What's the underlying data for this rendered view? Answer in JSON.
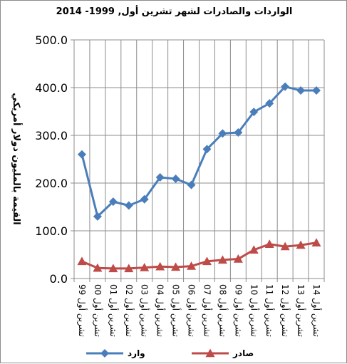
{
  "chart_data": {
    "type": "line",
    "title": "الواردات والصادرات لشهر تشرين أول,  1999- 2014",
    "ylabel": "القيمة بالمليون دولار أمريكي",
    "xlabel": "",
    "ylim": [
      0,
      500
    ],
    "yticks": [
      "0.0",
      "100.0",
      "200.0",
      "300.0",
      "400.0",
      "500.0"
    ],
    "ytick_values": [
      0,
      100,
      200,
      300,
      400,
      500
    ],
    "grid": true,
    "legend_position": "bottom",
    "categories": [
      "تشرين أول 99",
      "تشرين أول 00",
      "تشرين أول 01",
      "تشرين أول 02",
      "تشرين أول 03",
      "تشرين أول 04",
      "تشرين أول 05",
      "تشرين أول 06",
      "تشرين أول 07",
      "تشرين أول 08",
      "تشرين أول 09",
      "تشرين أول 10",
      "تشرين أول 11",
      "تشرين أول 12",
      "تشرين أول 13",
      "تشرين أول 14"
    ],
    "series": [
      {
        "name": "وارد",
        "color": "#4a7ebb",
        "marker": "diamond",
        "values": [
          260,
          130,
          161,
          153,
          166,
          212,
          209,
          196,
          271,
          304,
          306,
          349,
          367,
          402,
          394,
          394
        ]
      },
      {
        "name": "صادر",
        "color": "#be4b48",
        "marker": "triangle",
        "values": [
          36,
          22,
          21,
          21,
          23,
          25,
          24,
          26,
          36,
          39,
          41,
          60,
          72,
          67,
          70,
          75
        ]
      }
    ]
  }
}
